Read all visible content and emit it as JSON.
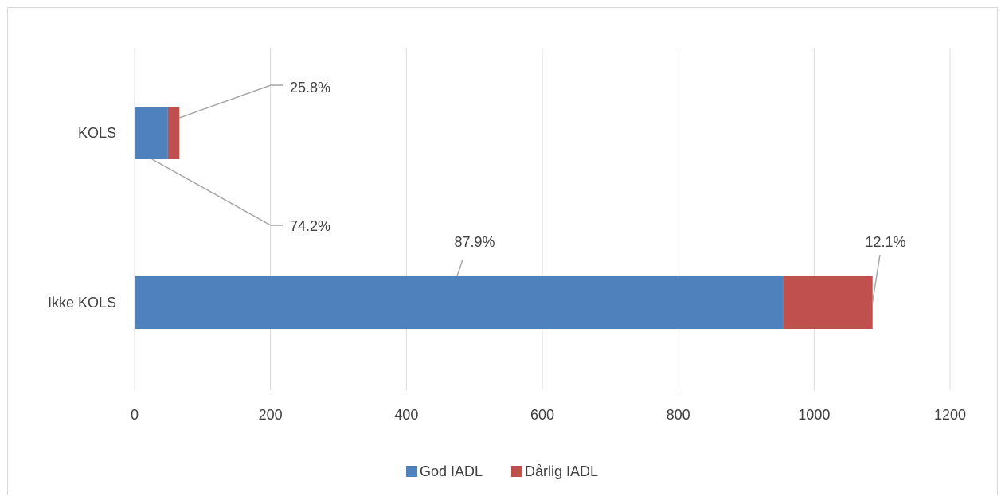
{
  "chart_data": {
    "type": "bar",
    "orientation": "horizontal",
    "stacked": true,
    "categories": [
      "KOLS",
      "Ikke KOLS"
    ],
    "series": [
      {
        "name": "God IADL",
        "color": "#4f81bd",
        "values": [
          49,
          955
        ],
        "labels": [
          "74.2%",
          "87.9%"
        ]
      },
      {
        "name": "Dårlig IADL",
        "color": "#c0504d",
        "values": [
          17,
          131
        ],
        "labels": [
          "25.8%",
          "12.1%"
        ]
      }
    ],
    "xlim": [
      0,
      1200
    ],
    "xticks": [
      0,
      200,
      400,
      600,
      800,
      1000,
      1200
    ],
    "title": "",
    "xlabel": "",
    "ylabel": "",
    "grid": "vertical",
    "legend_position": "bottom"
  }
}
